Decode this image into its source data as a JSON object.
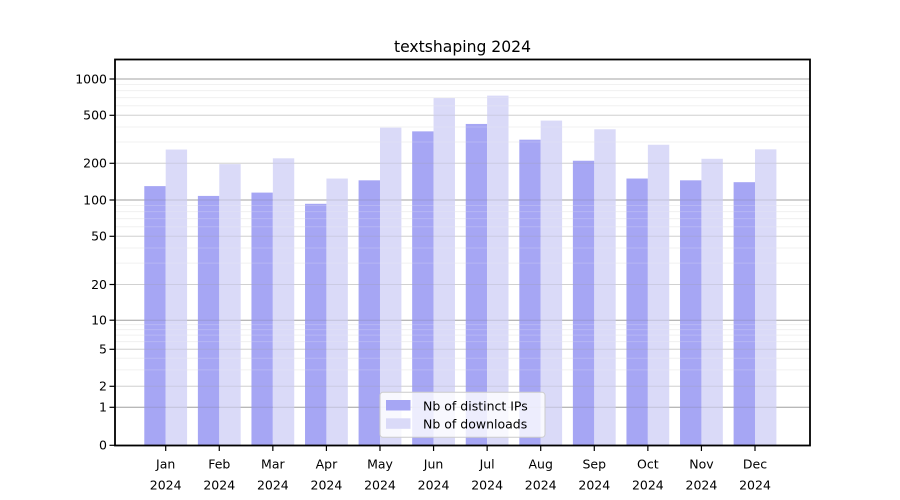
{
  "chart_data": {
    "type": "bar",
    "title": "textshaping 2024",
    "categories": [
      "Jan",
      "Feb",
      "Mar",
      "Apr",
      "May",
      "Jun",
      "Jul",
      "Aug",
      "Sep",
      "Oct",
      "Nov",
      "Dec"
    ],
    "x_tick_year": "2024",
    "series": [
      {
        "name": "Nb of distinct IPs",
        "color": "#a6a6f4",
        "values": [
          130,
          108,
          115,
          93,
          145,
          368,
          424,
          314,
          210,
          150,
          145,
          140
        ]
      },
      {
        "name": "Nb of downloads",
        "color": "#dadaf8",
        "values": [
          260,
          197,
          220,
          150,
          395,
          695,
          728,
          452,
          383,
          285,
          218,
          261
        ]
      }
    ],
    "y_axis": {
      "ticks": [
        1000,
        500,
        200,
        100,
        50,
        20,
        10,
        5,
        2,
        1,
        0
      ],
      "scale": "symlog",
      "range": [
        0,
        1000
      ]
    },
    "xlabel": "",
    "ylabel": "",
    "grid": "on",
    "legend": {
      "position": "lower-center"
    }
  }
}
